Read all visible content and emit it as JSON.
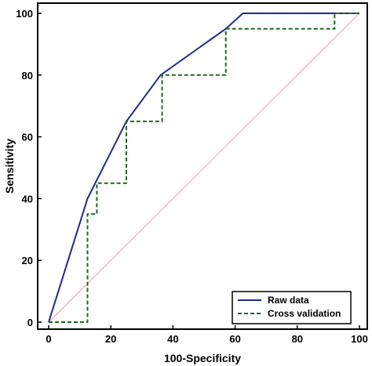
{
  "chart_data": {
    "type": "line",
    "title": "",
    "xlabel": "100-Specificity",
    "ylabel": "Sensitivity",
    "xlim": [
      0,
      100
    ],
    "ylim": [
      0,
      100
    ],
    "xticks": [
      "0",
      "20",
      "40",
      "60",
      "80",
      "100"
    ],
    "yticks": [
      "0",
      "20",
      "40",
      "60",
      "80",
      "100"
    ],
    "grid": false,
    "legend_position": "bottom-right",
    "series": [
      {
        "name": "Raw data",
        "style": "solid",
        "color": "#1f2a8c",
        "points": [
          [
            0,
            0
          ],
          [
            12.5,
            40
          ],
          [
            25,
            65
          ],
          [
            36,
            80
          ],
          [
            57,
            95
          ],
          [
            62.5,
            100
          ],
          [
            100,
            100
          ]
        ]
      },
      {
        "name": "Cross validation",
        "style": "dashed",
        "color": "#1a6b1a",
        "points": [
          [
            0,
            0
          ],
          [
            12.5,
            0
          ],
          [
            12.5,
            35
          ],
          [
            15.5,
            35
          ],
          [
            15.5,
            45
          ],
          [
            25,
            45
          ],
          [
            25,
            65
          ],
          [
            36.5,
            65
          ],
          [
            36.5,
            80
          ],
          [
            57,
            80
          ],
          [
            57,
            95
          ],
          [
            92,
            95
          ],
          [
            92,
            100
          ],
          [
            100,
            100
          ]
        ]
      },
      {
        "name": "",
        "style": "solid-thin",
        "color": "#e8a3a3",
        "points": [
          [
            0,
            0
          ],
          [
            100,
            100
          ]
        ]
      }
    ]
  }
}
